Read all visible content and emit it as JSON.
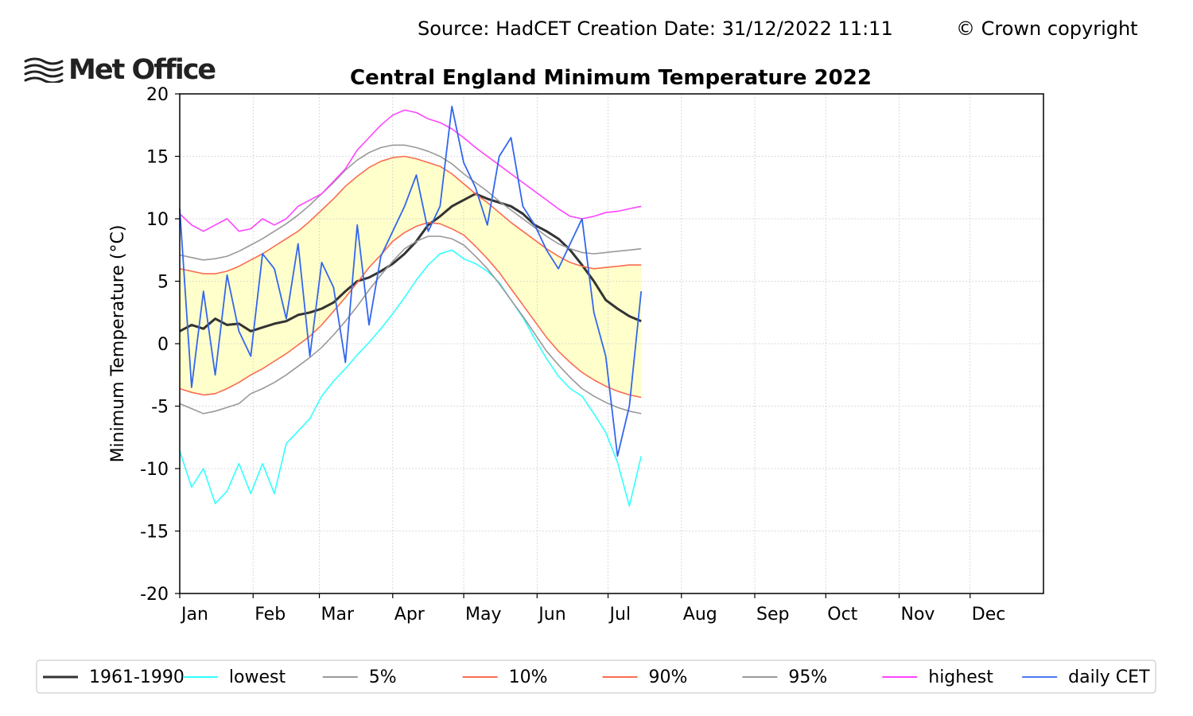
{
  "header": {
    "source": "Source: HadCET  Creation Date: 31/12/2022 11:11",
    "copyright": "© Crown copyright",
    "logo_text": "Met Office"
  },
  "chart_data": {
    "type": "line",
    "title": "Central England Minimum Temperature 2022",
    "xlabel": "",
    "ylabel": "Minimum Temperature (°C)",
    "ylim": [
      -20,
      20
    ],
    "yticks": [
      -20,
      -15,
      -10,
      -5,
      0,
      5,
      10,
      15,
      20
    ],
    "months": [
      "Jan",
      "Feb",
      "Mar",
      "Apr",
      "May",
      "Jun",
      "Jul",
      "Aug",
      "Sep",
      "Oct",
      "Nov",
      "Dec"
    ],
    "grid": true,
    "legend_position": "bottom",
    "shaded_band": {
      "between": [
        "10%",
        "90%"
      ],
      "color": "#ffffcc"
    },
    "sample_interval_days": 5,
    "series": [
      {
        "name": "1961-1990",
        "color": "#333333",
        "values": [
          1.0,
          1.5,
          1.2,
          2.0,
          1.5,
          1.6,
          1.0,
          1.3,
          1.6,
          1.8,
          2.3,
          2.5,
          2.8,
          3.3,
          4.2,
          5.0,
          5.3,
          5.8,
          6.4,
          7.2,
          8.2,
          9.5,
          10.2,
          11.0,
          11.5,
          12.0,
          11.6,
          11.3,
          11.0,
          10.4,
          9.5,
          9.0,
          8.4,
          7.5,
          6.3,
          5.0,
          3.5,
          2.8,
          2.2,
          1.8
        ]
      },
      {
        "name": "lowest",
        "color": "#33ffff",
        "values": [
          -8.6,
          -11.5,
          -10.0,
          -12.8,
          -11.8,
          -9.6,
          -12.0,
          -9.6,
          -12.0,
          -8.0,
          -7.0,
          -6.0,
          -4.2,
          -3.0,
          -2.0,
          -0.9,
          0.1,
          1.2,
          2.4,
          3.7,
          5.1,
          6.3,
          7.2,
          7.5,
          6.8,
          6.4,
          5.8,
          4.9,
          3.5,
          2.1,
          0.4,
          -1.2,
          -2.6,
          -3.6,
          -4.2,
          -5.6,
          -7.1,
          -9.5,
          -13.0,
          -9.0
        ]
      },
      {
        "name": "5%",
        "color": "#999999",
        "values": [
          -4.8,
          -5.2,
          -5.6,
          -5.4,
          -5.1,
          -4.8,
          -4.0,
          -3.6,
          -3.1,
          -2.5,
          -1.8,
          -1.1,
          -0.3,
          0.7,
          1.8,
          3.0,
          4.3,
          5.5,
          6.6,
          7.6,
          8.2,
          8.6,
          8.6,
          8.4,
          7.9,
          7.0,
          6.0,
          4.8,
          3.5,
          2.2,
          0.8,
          -0.6,
          -1.7,
          -2.7,
          -3.6,
          -4.2,
          -4.7,
          -5.1,
          -5.4,
          -5.6
        ]
      },
      {
        "name": "10%",
        "color": "#fa6c4f",
        "values": [
          -3.6,
          -3.9,
          -4.1,
          -4.0,
          -3.6,
          -3.1,
          -2.5,
          -2.0,
          -1.4,
          -0.8,
          -0.1,
          0.6,
          1.5,
          2.6,
          3.7,
          4.9,
          6.1,
          7.1,
          8.2,
          8.9,
          9.4,
          9.7,
          9.6,
          9.2,
          8.7,
          7.8,
          6.8,
          5.7,
          4.4,
          3.1,
          1.8,
          0.5,
          -0.6,
          -1.5,
          -2.3,
          -2.9,
          -3.4,
          -3.8,
          -4.1,
          -4.3
        ]
      },
      {
        "name": "90%",
        "color": "#fa6c4f",
        "values": [
          6.0,
          5.8,
          5.6,
          5.6,
          5.8,
          6.2,
          6.7,
          7.2,
          7.8,
          8.4,
          9.0,
          9.8,
          10.7,
          11.6,
          12.6,
          13.4,
          14.1,
          14.6,
          14.9,
          15.0,
          14.8,
          14.5,
          14.2,
          13.6,
          12.8,
          12.0,
          11.3,
          10.5,
          9.7,
          9.0,
          8.3,
          7.6,
          7.0,
          6.5,
          6.2,
          6.0,
          6.1,
          6.2,
          6.3,
          6.3
        ]
      },
      {
        "name": "95%",
        "color": "#999999",
        "values": [
          7.1,
          6.9,
          6.7,
          6.8,
          7.0,
          7.4,
          7.9,
          8.4,
          9.0,
          9.6,
          10.3,
          11.1,
          12.0,
          12.9,
          13.9,
          14.7,
          15.3,
          15.7,
          15.9,
          15.9,
          15.7,
          15.4,
          15.0,
          14.4,
          13.6,
          12.9,
          12.2,
          11.4,
          10.7,
          10.0,
          9.3,
          8.6,
          8.0,
          7.6,
          7.3,
          7.2,
          7.3,
          7.4,
          7.5,
          7.6
        ]
      },
      {
        "name": "highest",
        "color": "#ff44ff",
        "values": [
          10.4,
          9.5,
          9.0,
          9.5,
          10.0,
          9.0,
          9.2,
          10.0,
          9.5,
          10.0,
          11.0,
          11.5,
          12.0,
          13.0,
          14.0,
          15.5,
          16.5,
          17.5,
          18.3,
          18.7,
          18.5,
          18.0,
          17.7,
          17.2,
          16.5,
          15.7,
          15.0,
          14.3,
          13.6,
          12.9,
          12.2,
          11.5,
          10.8,
          10.2,
          10.0,
          10.2,
          10.5,
          10.6,
          10.8,
          11.0
        ]
      },
      {
        "name": "daily CET",
        "color": "#3366ee",
        "values": [
          10.8,
          -3.5,
          4.2,
          -2.5,
          5.5,
          1.0,
          -1.0,
          7.2,
          6.0,
          2.0,
          8.0,
          -1.0,
          6.5,
          4.5,
          -1.5,
          9.5,
          1.5,
          7.0,
          9.0,
          11.0,
          13.5,
          9.0,
          11.0,
          19.0,
          14.5,
          12.5,
          9.5,
          15.0,
          16.5,
          11.0,
          9.5,
          7.5,
          6.0,
          8.0,
          10.0,
          2.5,
          -1.0,
          -9.0,
          -5.0,
          4.2
        ]
      }
    ]
  }
}
